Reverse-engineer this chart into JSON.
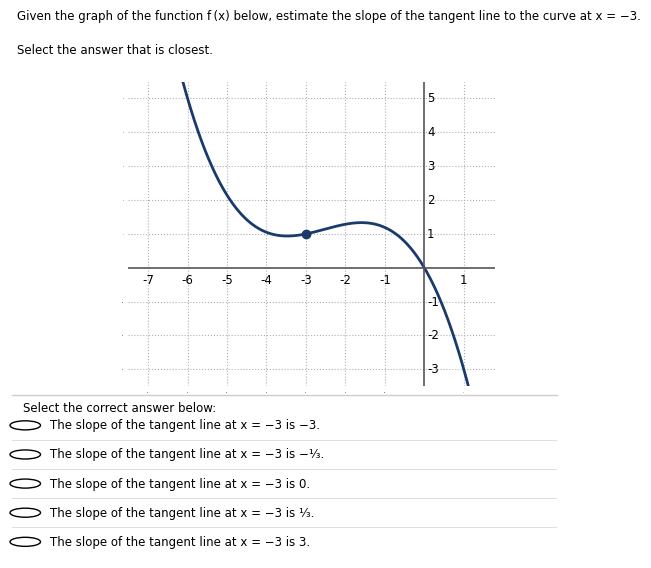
{
  "curve_color": "#1a3a6b",
  "dot_x": -3,
  "dot_y": 1,
  "dot_color": "#1a3a6b",
  "x_min": -7.5,
  "x_max": 1.8,
  "y_min": -3.5,
  "y_max": 5.5,
  "x_ticks": [
    -7,
    -6,
    -5,
    -4,
    -3,
    -2,
    -1,
    1
  ],
  "y_ticks": [
    -3,
    -2,
    -1,
    1,
    2,
    3,
    4,
    5
  ],
  "grid_color": "#b0b0b0",
  "axis_color": "#555555",
  "bg_color": "#ffffff",
  "poly_a": -0.11904762,
  "poly_b": -0.9047619,
  "poly_c": -1.97619048,
  "poly_d": 0.0,
  "title_line1": "Given the graph of the function f (x) below, estimate the slope of the tangent line to the curve at x = −3.",
  "title_line2": "Select the answer that is closest.",
  "select_label": "Select the correct answer below:",
  "answer_texts": [
    "The slope of the tangent line at x = −3 is −3.",
    "The slope of the tangent line at x = −3 is −¹⁄₃.",
    "The slope of the tangent line at x = −3 is 0.",
    "The slope of the tangent line at x = −3 is ¹⁄₃.",
    "The slope of the tangent line at x = −3 is 3."
  ]
}
